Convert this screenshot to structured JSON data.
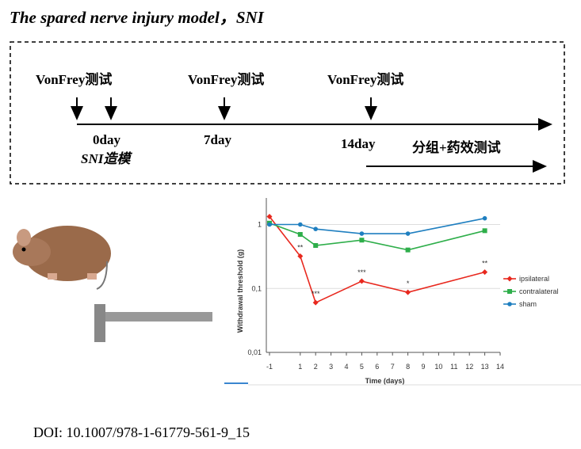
{
  "title": "The spared nerve injury model，SNI",
  "timeline": {
    "tests": [
      "VonFrey测试",
      "VonFrey测试",
      "VonFrey测试"
    ],
    "days": [
      "0day",
      "7day",
      "14day"
    ],
    "surgery": "SNI造模",
    "treatment": "分组+药效测试"
  },
  "chart_data": {
    "type": "line",
    "y_label": "Withdrawal threshold (g)",
    "x_label": "Time (days)",
    "x": [
      -1,
      1,
      2,
      5,
      8,
      13
    ],
    "series": [
      {
        "name": "ipsilateral",
        "color": "#e8281e",
        "marker": "diamond",
        "values": [
          1.33,
          0.32,
          0.06,
          0.13,
          0.087,
          0.18
        ],
        "significance": [
          null,
          "**",
          "***",
          "***",
          "*",
          "**"
        ]
      },
      {
        "name": "contralateral",
        "color": "#2eae4a",
        "marker": "square",
        "values": [
          1.05,
          0.7,
          0.47,
          0.57,
          0.4,
          0.8
        ]
      },
      {
        "name": "sham",
        "color": "#1f7fc0",
        "marker": "circle",
        "values": [
          1.0,
          1.0,
          0.85,
          0.72,
          0.72,
          1.25
        ]
      }
    ],
    "log_y": true,
    "xlim": [
      -1,
      14
    ],
    "xticks": [
      -1,
      1,
      2,
      3,
      4,
      5,
      6,
      7,
      8,
      9,
      10,
      11,
      12,
      13,
      14
    ],
    "ylim": [
      0.01,
      2.6
    ],
    "yticks": [
      {
        "value": 0.01,
        "label": "0,01"
      },
      {
        "value": 0.1,
        "label": "0,1"
      },
      1
    ],
    "grid": true,
    "legend": "right"
  },
  "doi": "DOI: 10.1007/978-1-61779-561-9_15"
}
